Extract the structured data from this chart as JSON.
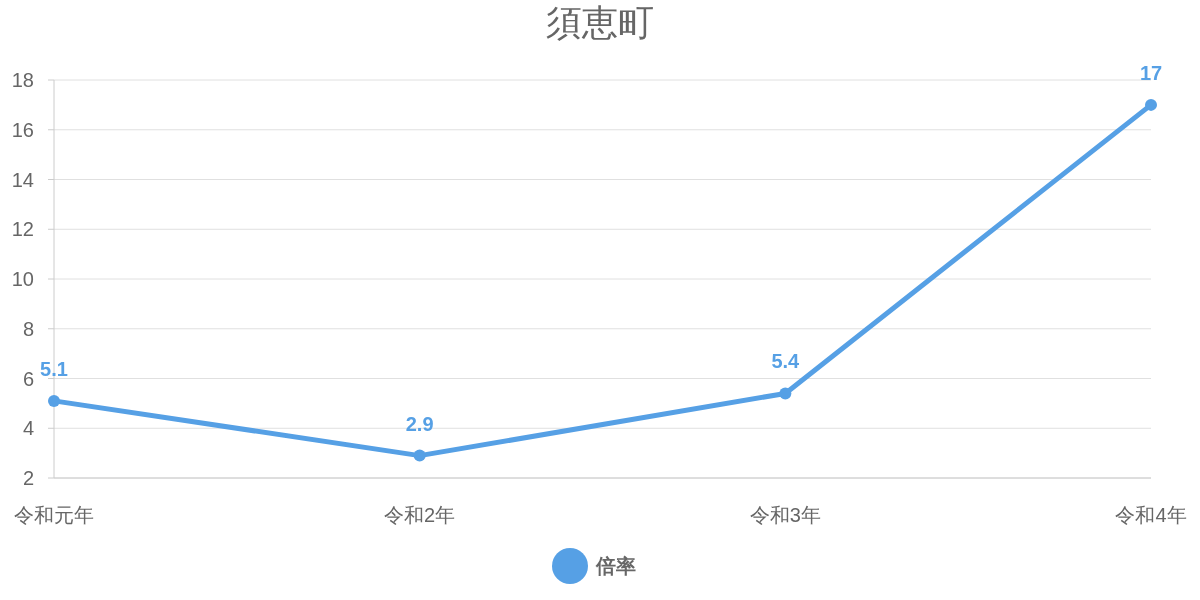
{
  "chart_data": {
    "type": "line",
    "title": "須恵町",
    "categories": [
      "令和元年",
      "令和2年",
      "令和3年",
      "令和4年"
    ],
    "series": [
      {
        "name": "倍率",
        "color": "#56a0e5",
        "values": [
          5.1,
          2.9,
          5.4,
          17
        ]
      }
    ],
    "ylim": [
      2,
      18
    ],
    "yticks": [
      2,
      4,
      6,
      8,
      10,
      12,
      14,
      16,
      18
    ],
    "grid": "y",
    "legend": "bottom",
    "marker": "circle",
    "line_style": "solid",
    "data_labels": true
  }
}
